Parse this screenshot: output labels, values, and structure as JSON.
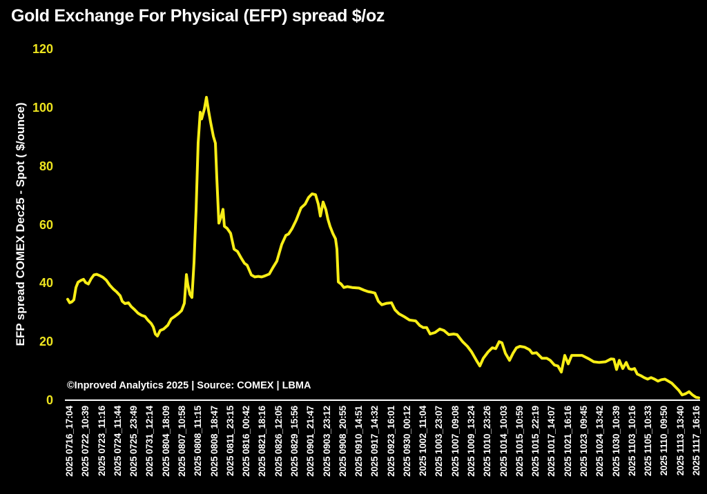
{
  "page": {
    "title": "Gold Exchange For Physical (EFP) spread $/oz",
    "source_note": "©Inproved Analytics 2025 | Source: COMEX | LBMA"
  },
  "colors": {
    "background": "#000000",
    "title_text": "#FFFFFF",
    "x_tick_text": "#FFFFFF",
    "y_tick_text": "#EDE41F",
    "line_yellow": "#F8EE16",
    "axis_line": "#FFFFFF"
  },
  "chart_data": {
    "type": "line",
    "title": "Gold Exchange For Physical (EFP) spread $/oz",
    "xlabel": "",
    "ylabel": "EFP spread  COMEX Dec25 - Spot ( $/ounce)",
    "ylim": [
      0,
      120
    ],
    "yticks": [
      0,
      20,
      40,
      60,
      80,
      100,
      120
    ],
    "grid": false,
    "legend": "none",
    "source_note": "©Inproved Analytics 2025 | Source: COMEX | LBMA",
    "xtick_labels": [
      "2025 0716_17:04",
      "2025 0722_10:39",
      "2025 0723_11:16",
      "2025 0724_11:44",
      "2025 0725_23:49",
      "2025 0731_12:14",
      "2025 0804_18:09",
      "2025 0807_10:58",
      "2025 0808_11:15",
      "2025 0808_18:47",
      "2025 0811_23:15",
      "2025 0816_00:42",
      "2025 0821_18:16",
      "2025 0826_12:05",
      "2025 0829_15:56",
      "2025 0901_21:47",
      "2025 0903_23:12",
      "2025 0908_20:55",
      "2025 0910_14:51",
      "2025 0917_14:32",
      "2025 0923_16:01",
      "2025 0930_00:12",
      "2025 1002_11:04",
      "2025 1003_23:07",
      "2025 1007_09:08",
      "2025 1009_13:24",
      "2025 1010_23:26",
      "2025 1014_10:03",
      "2025 1015_10:59",
      "2025 1015_22:19",
      "2025 1017_14:07",
      "2025 1021_16:16",
      "2025 1023_09:45",
      "2025 1024_13:42",
      "2025 1030_10:39",
      "2025 1103_10:16",
      "2025 1105_10:33",
      "2025 1110_09:50",
      "2025 1113_13:40",
      "2025 1117_16:16"
    ],
    "series": [
      {
        "name": "EFP spread COMEX Dec25 - Spot",
        "color": "#F8EE16",
        "points": [
          [
            98,
            34.5
          ],
          [
            101,
            33.3
          ],
          [
            104,
            33.6
          ],
          [
            107,
            34.3
          ],
          [
            110,
            38.5
          ],
          [
            113,
            40.3
          ],
          [
            117,
            40.9
          ],
          [
            121,
            41.3
          ],
          [
            124,
            40.2
          ],
          [
            128,
            39.7
          ],
          [
            132,
            41.5
          ],
          [
            136,
            42.8
          ],
          [
            140,
            43.0
          ],
          [
            145,
            42.5
          ],
          [
            149,
            42.0
          ],
          [
            154,
            41.0
          ],
          [
            159,
            39.3
          ],
          [
            164,
            38.0
          ],
          [
            169,
            37.0
          ],
          [
            174,
            35.7
          ],
          [
            177,
            33.8
          ],
          [
            181,
            33.0
          ],
          [
            186,
            33.3
          ],
          [
            190,
            32.0
          ],
          [
            195,
            30.9
          ],
          [
            200,
            29.7
          ],
          [
            205,
            29.0
          ],
          [
            210,
            28.6
          ],
          [
            214,
            27.4
          ],
          [
            219,
            26.2
          ],
          [
            222,
            25.0
          ],
          [
            225,
            22.6
          ],
          [
            228,
            21.9
          ],
          [
            232,
            23.8
          ],
          [
            237,
            24.3
          ],
          [
            243,
            25.6
          ],
          [
            248,
            27.8
          ],
          [
            253,
            28.6
          ],
          [
            258,
            29.5
          ],
          [
            263,
            30.6
          ],
          [
            267,
            33.1
          ],
          [
            270,
            42.9
          ],
          [
            272,
            39.5
          ],
          [
            275,
            36.2
          ],
          [
            278,
            35.1
          ],
          [
            281,
            47.0
          ],
          [
            284,
            65.0
          ],
          [
            287,
            88.0
          ],
          [
            290,
            98.4
          ],
          [
            292,
            96.1
          ],
          [
            296,
            99.5
          ],
          [
            299,
            103.5
          ],
          [
            302,
            99.0
          ],
          [
            305,
            95.0
          ],
          [
            309,
            90.2
          ],
          [
            312,
            87.8
          ],
          [
            314,
            76.0
          ],
          [
            317,
            60.5
          ],
          [
            320,
            62.5
          ],
          [
            323,
            65.2
          ],
          [
            325,
            59.4
          ],
          [
            329,
            58.7
          ],
          [
            334,
            57.0
          ],
          [
            339,
            51.6
          ],
          [
            344,
            50.8
          ],
          [
            349,
            48.7
          ],
          [
            354,
            46.8
          ],
          [
            358,
            46.1
          ],
          [
            364,
            42.8
          ],
          [
            369,
            42.1
          ],
          [
            374,
            42.3
          ],
          [
            379,
            42.1
          ],
          [
            384,
            42.5
          ],
          [
            390,
            43.1
          ],
          [
            395,
            45.2
          ],
          [
            401,
            47.5
          ],
          [
            408,
            53.2
          ],
          [
            414,
            56.3
          ],
          [
            418,
            56.8
          ],
          [
            423,
            58.6
          ],
          [
            429,
            61.5
          ],
          [
            436,
            65.7
          ],
          [
            442,
            67.0
          ],
          [
            447,
            69.3
          ],
          [
            452,
            70.5
          ],
          [
            457,
            70.2
          ],
          [
            461,
            67.0
          ],
          [
            464,
            62.9
          ],
          [
            468,
            67.7
          ],
          [
            472,
            65.1
          ],
          [
            475,
            61.8
          ],
          [
            478,
            59.4
          ],
          [
            482,
            57.0
          ],
          [
            486,
            55.1
          ],
          [
            488,
            51.6
          ],
          [
            490,
            40.4
          ],
          [
            494,
            39.7
          ],
          [
            498,
            38.5
          ],
          [
            503,
            38.8
          ],
          [
            510,
            38.5
          ],
          [
            520,
            38.3
          ],
          [
            527,
            37.6
          ],
          [
            533,
            37.1
          ],
          [
            538,
            36.9
          ],
          [
            543,
            36.6
          ],
          [
            548,
            33.8
          ],
          [
            553,
            32.6
          ],
          [
            560,
            33.1
          ],
          [
            567,
            33.3
          ],
          [
            572,
            30.9
          ],
          [
            578,
            29.5
          ],
          [
            585,
            28.6
          ],
          [
            593,
            27.4
          ],
          [
            602,
            27.1
          ],
          [
            608,
            25.5
          ],
          [
            613,
            24.8
          ],
          [
            618,
            24.8
          ],
          [
            623,
            22.6
          ],
          [
            630,
            23.1
          ],
          [
            637,
            24.3
          ],
          [
            643,
            23.8
          ],
          [
            650,
            22.4
          ],
          [
            657,
            22.6
          ],
          [
            662,
            22.4
          ],
          [
            670,
            20.0
          ],
          [
            677,
            18.4
          ],
          [
            683,
            16.5
          ],
          [
            690,
            13.6
          ],
          [
            695,
            11.7
          ],
          [
            700,
            14.3
          ],
          [
            707,
            16.5
          ],
          [
            713,
            17.9
          ],
          [
            718,
            17.6
          ],
          [
            723,
            20.0
          ],
          [
            727,
            19.6
          ],
          [
            732,
            16.0
          ],
          [
            738,
            13.6
          ],
          [
            743,
            16.0
          ],
          [
            748,
            17.9
          ],
          [
            753,
            18.4
          ],
          [
            760,
            18.1
          ],
          [
            767,
            17.2
          ],
          [
            771,
            16.0
          ],
          [
            777,
            16.2
          ],
          [
            785,
            14.3
          ],
          [
            792,
            14.3
          ],
          [
            797,
            13.6
          ],
          [
            803,
            12.0
          ],
          [
            808,
            11.7
          ],
          [
            813,
            9.6
          ],
          [
            818,
            15.3
          ],
          [
            823,
            12.4
          ],
          [
            828,
            15.3
          ],
          [
            835,
            15.3
          ],
          [
            843,
            15.3
          ],
          [
            853,
            14.1
          ],
          [
            860,
            13.1
          ],
          [
            868,
            12.9
          ],
          [
            877,
            13.1
          ],
          [
            885,
            14.1
          ],
          [
            889,
            14.0
          ],
          [
            893,
            10.5
          ],
          [
            897,
            13.6
          ],
          [
            902,
            10.8
          ],
          [
            907,
            12.9
          ],
          [
            911,
            10.8
          ],
          [
            915,
            10.5
          ],
          [
            919,
            10.8
          ],
          [
            923,
            8.9
          ],
          [
            928,
            8.4
          ],
          [
            933,
            7.7
          ],
          [
            938,
            7.2
          ],
          [
            943,
            7.7
          ],
          [
            948,
            7.2
          ],
          [
            953,
            6.5
          ],
          [
            958,
            7.0
          ],
          [
            963,
            7.2
          ],
          [
            968,
            6.5
          ],
          [
            973,
            5.8
          ],
          [
            978,
            4.6
          ],
          [
            983,
            3.4
          ],
          [
            988,
            1.8
          ],
          [
            993,
            2.2
          ],
          [
            998,
            2.9
          ],
          [
            1003,
            1.8
          ],
          [
            1008,
            1.0
          ],
          [
            1012,
            0.8
          ]
        ]
      }
    ]
  }
}
